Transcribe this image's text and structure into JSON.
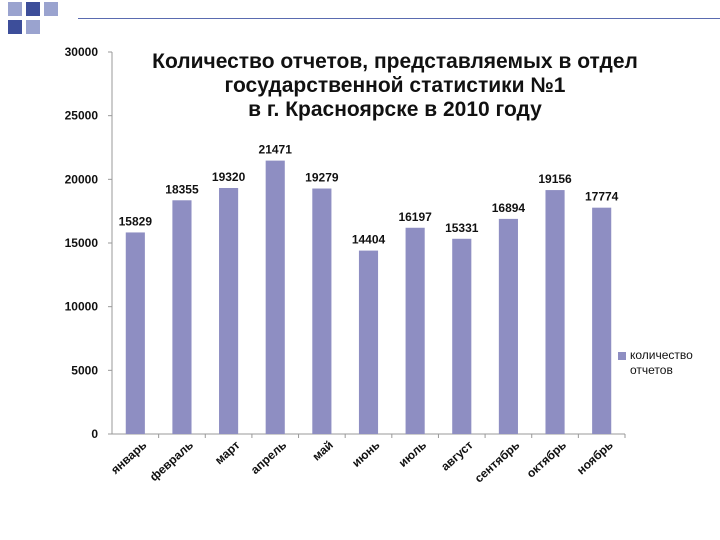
{
  "chart_data": {
    "type": "bar",
    "title_lines": [
      "Количество отчетов, представляемых в отдел",
      "государственной статистики №1",
      "в г. Красноярске в 2010 году"
    ],
    "categories": [
      "январь",
      "февраль",
      "март",
      "апрель",
      "май",
      "июнь",
      "июль",
      "август",
      "сентябрь",
      "октябрь",
      "ноябрь"
    ],
    "series": [
      {
        "name": "количество отчетов",
        "values": [
          15829,
          18355,
          19320,
          21471,
          19279,
          14404,
          16197,
          15331,
          16894,
          19156,
          17774
        ]
      }
    ],
    "y_ticks": [
      "0",
      "5000",
      "10000",
      "15000",
      "20000",
      "25000",
      "30000"
    ],
    "ylim": [
      0,
      30000
    ],
    "bar_color": "#8e8ec2",
    "legend_position": "right",
    "grid": false
  },
  "legend": {
    "line1": "количество",
    "line2": "отчетов"
  }
}
